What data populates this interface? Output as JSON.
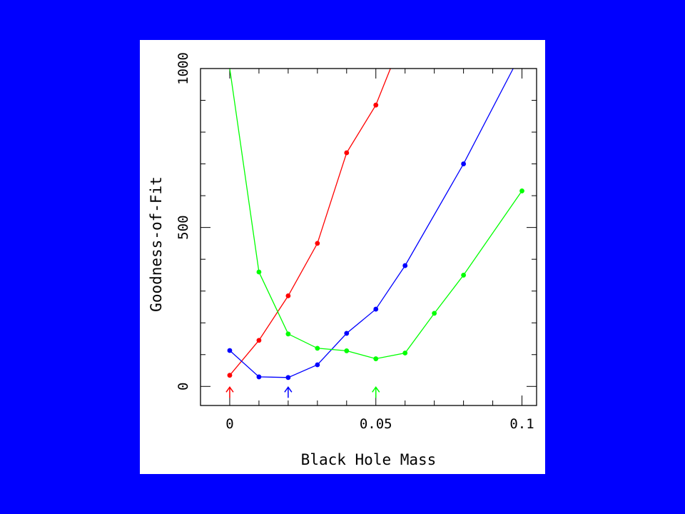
{
  "slide": {
    "background": "#0000ff",
    "panel_background": "#ffffff"
  },
  "chart_data": {
    "type": "line",
    "title": "",
    "xlabel": "Black Hole Mass",
    "ylabel": "Goodness-of-Fit",
    "xlim": [
      -0.01,
      0.105
    ],
    "ylim": [
      -60,
      1000
    ],
    "x_ticks": [
      0,
      0.05,
      0.1
    ],
    "x_tick_labels": [
      "0",
      "0.05",
      "0.1"
    ],
    "y_ticks": [
      0,
      500,
      1000
    ],
    "y_tick_labels": [
      "0",
      "500",
      "1000"
    ],
    "grid": false,
    "legend": "none",
    "series": [
      {
        "color": "#ff0000",
        "x": [
          0,
          0.01,
          0.02,
          0.03,
          0.04,
          0.05,
          0.055
        ],
        "y": [
          35,
          145,
          285,
          450,
          735,
          885,
          1000
        ],
        "markers": [
          true,
          true,
          true,
          true,
          true,
          true,
          false
        ]
      },
      {
        "color": "#0000ff",
        "x": [
          0,
          0.01,
          0.02,
          0.03,
          0.04,
          0.05,
          0.06,
          0.08,
          0.097
        ],
        "y": [
          113,
          30,
          28,
          68,
          167,
          243,
          380,
          700,
          1000
        ],
        "markers": [
          true,
          true,
          true,
          true,
          true,
          true,
          true,
          true,
          false
        ]
      },
      {
        "color": "#00ff00",
        "x": [
          0,
          0.01,
          0.02,
          0.03,
          0.04,
          0.05,
          0.06,
          0.07,
          0.08,
          0.1
        ],
        "y": [
          1000,
          360,
          165,
          120,
          112,
          87,
          105,
          230,
          350,
          615
        ],
        "markers": [
          false,
          true,
          true,
          true,
          true,
          true,
          true,
          true,
          true,
          true
        ]
      }
    ],
    "annotations": [
      {
        "type": "arrow",
        "x": 0,
        "color": "#ff0000"
      },
      {
        "type": "arrow",
        "x": 0.02,
        "color": "#0000ff"
      },
      {
        "type": "arrow",
        "x": 0.05,
        "color": "#00ff00"
      }
    ]
  }
}
